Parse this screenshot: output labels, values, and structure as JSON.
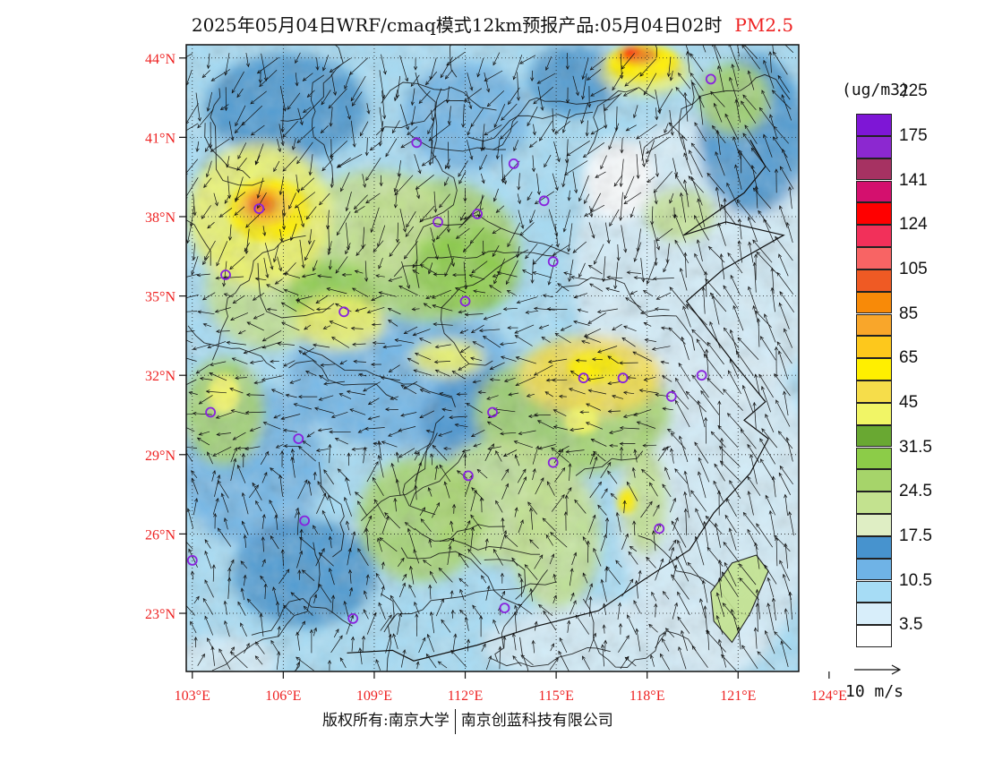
{
  "title": {
    "main": "2025年05月04日WRF/cmaq模式12km预报产品:05月04日02时",
    "product": "PM2.5"
  },
  "map": {
    "lat_ticks": [
      "44°N",
      "41°N",
      "38°N",
      "35°N",
      "32°N",
      "29°N",
      "26°N",
      "23°N"
    ],
    "lon_ticks": [
      "103°E",
      "106°E",
      "109°E",
      "112°E",
      "115°E",
      "118°E",
      "121°E",
      "124°E"
    ],
    "lat_values": [
      44,
      41,
      38,
      35,
      32,
      29,
      26,
      23
    ],
    "lon_values": [
      103,
      106,
      109,
      112,
      115,
      118,
      121,
      124
    ],
    "extent": {
      "lon": [
        102.8,
        123.0
      ],
      "lat": [
        20.8,
        44.5
      ]
    },
    "axis_color": "#ee2222",
    "site_marker_color": "#8822dd",
    "sites": [
      [
        120.1,
        43.2
      ],
      [
        104.1,
        35.8
      ],
      [
        105.2,
        38.3
      ],
      [
        108.0,
        34.4
      ],
      [
        111.1,
        37.8
      ],
      [
        112.4,
        38.1
      ],
      [
        113.6,
        40.0
      ],
      [
        114.6,
        38.6
      ],
      [
        114.9,
        36.3
      ],
      [
        110.4,
        40.8
      ],
      [
        112.0,
        34.8
      ],
      [
        103.6,
        30.6
      ],
      [
        106.5,
        29.6
      ],
      [
        106.7,
        26.5
      ],
      [
        103.0,
        25.0
      ],
      [
        108.3,
        22.8
      ],
      [
        112.9,
        30.6
      ],
      [
        112.1,
        28.2
      ],
      [
        113.3,
        23.2
      ],
      [
        114.9,
        28.7
      ],
      [
        115.9,
        31.9
      ],
      [
        117.2,
        31.9
      ],
      [
        118.8,
        31.2
      ],
      [
        119.8,
        32.0
      ],
      [
        118.4,
        26.2
      ]
    ]
  },
  "legend": {
    "unit": "(ug/m3)",
    "colors": [
      "#ffffff",
      "#d8eefa",
      "#a6dcf5",
      "#6fb3e6",
      "#4793ce",
      "#dfeec4",
      "#c3e28f",
      "#a6d46a",
      "#8ccc48",
      "#69a832",
      "#f1f566",
      "#f6dd4a",
      "#ffef00",
      "#fdc81c",
      "#f9a62a",
      "#f88a08",
      "#ef5a24",
      "#f86464",
      "#f2305a",
      "#ff0000",
      "#d4106e",
      "#a63262",
      "#8c28d0",
      "#7e16d6"
    ],
    "labels": [
      {
        "text": "3.5",
        "at": 1
      },
      {
        "text": "10.5",
        "at": 3
      },
      {
        "text": "17.5",
        "at": 5
      },
      {
        "text": "24.5",
        "at": 7
      },
      {
        "text": "31.5",
        "at": 9
      },
      {
        "text": "45",
        "at": 11
      },
      {
        "text": "65",
        "at": 13
      },
      {
        "text": "85",
        "at": 15
      },
      {
        "text": "105",
        "at": 17
      },
      {
        "text": "124",
        "at": 19
      },
      {
        "text": "141",
        "at": 21
      },
      {
        "text": "175",
        "at": 23
      },
      {
        "text": "225",
        "at": 25
      }
    ]
  },
  "wind_reference": "10 m/s",
  "footer": {
    "left": "版权所有:南京大学",
    "right": "南京创蓝科技有限公司"
  }
}
